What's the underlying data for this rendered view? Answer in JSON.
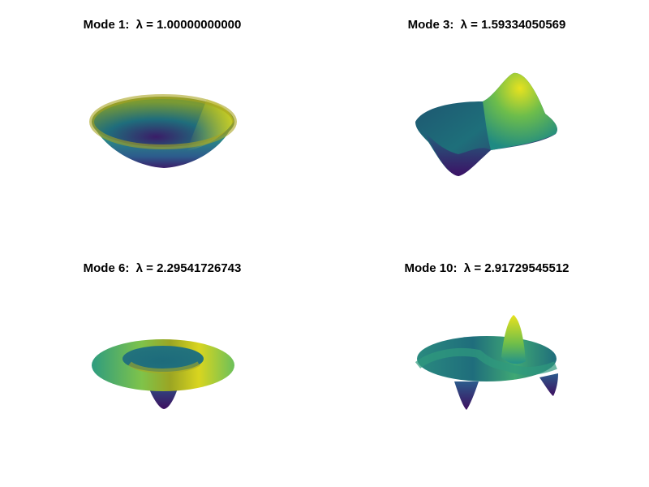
{
  "figure": {
    "colormap": "viridis",
    "panels": [
      {
        "title": "Mode 1:  λ = 1.00000000000",
        "mode": 1,
        "eigenvalue": "1.00000000000"
      },
      {
        "title": "Mode 3:  λ = 1.59334050569",
        "mode": 3,
        "eigenvalue": "1.59334050569"
      },
      {
        "title": "Mode 6:  λ = 2.29541726743",
        "mode": 6,
        "eigenvalue": "2.29541726743"
      },
      {
        "title": "Mode 10:  λ = 2.91729545512",
        "mode": 10,
        "eigenvalue": "2.91729545512"
      }
    ]
  },
  "colors": {
    "viridis_dark": "#440154",
    "viridis_blue": "#31688e",
    "viridis_teal": "#35b779",
    "viridis_yellow": "#fde725",
    "background": "#ffffff"
  }
}
